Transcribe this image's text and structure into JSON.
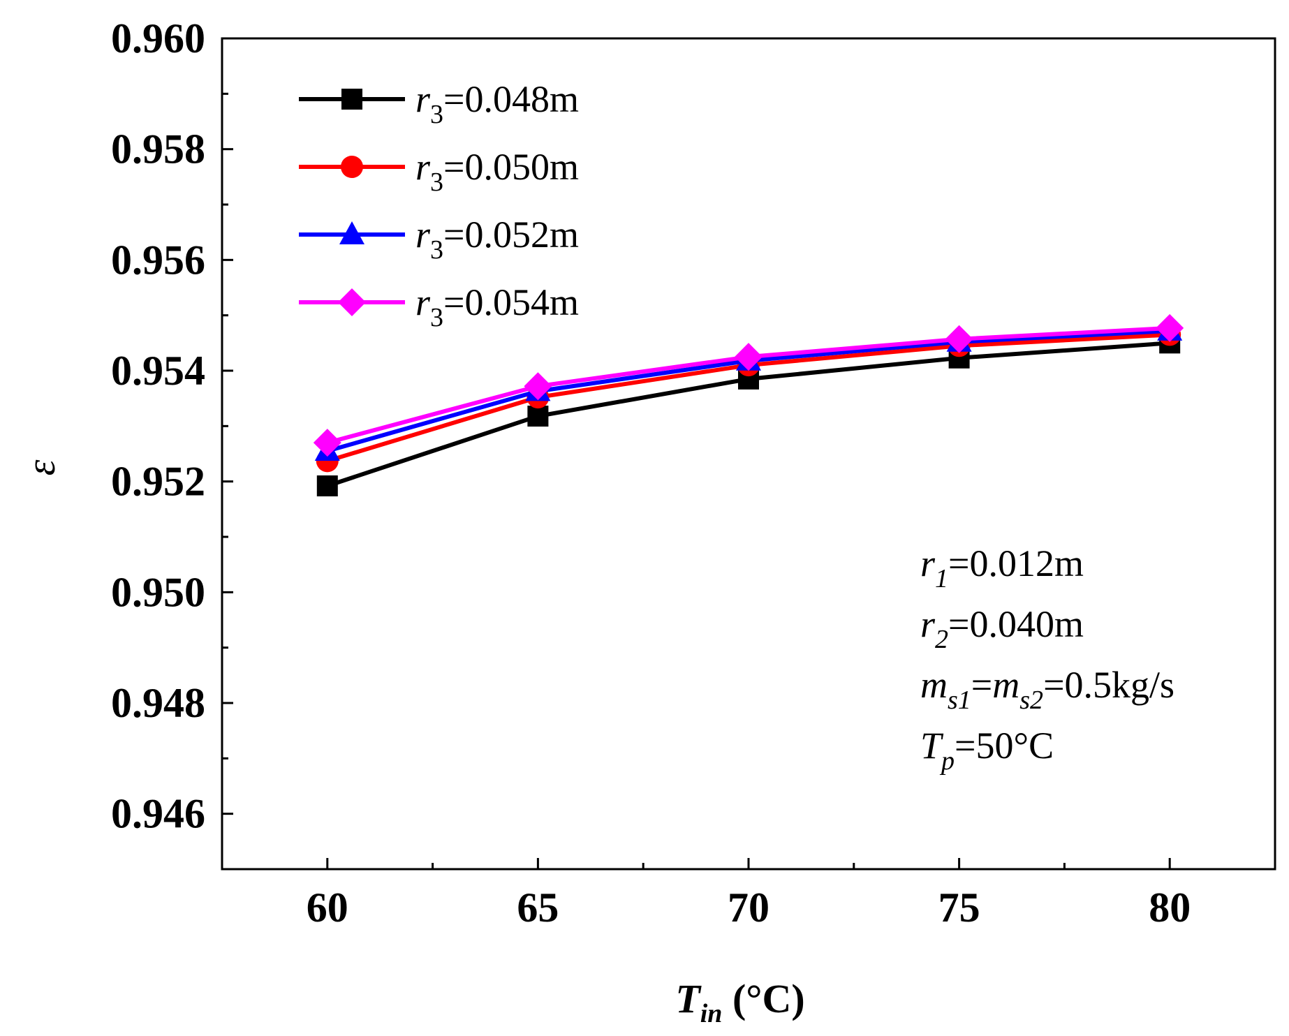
{
  "chart_data": {
    "type": "line",
    "title": "",
    "xlabel": {
      "main": "T",
      "sub": "in",
      "unit": " (°C)"
    },
    "ylabel": "ε",
    "x": [
      60,
      65,
      70,
      75,
      80
    ],
    "xlim": [
      57.5,
      82.5
    ],
    "ylim": [
      0.945,
      0.96
    ],
    "xticks": [
      60,
      65,
      70,
      75,
      80
    ],
    "yticks": [
      0.946,
      0.948,
      0.95,
      0.952,
      0.954,
      0.956,
      0.958,
      0.96
    ],
    "ytick_labels": [
      "0.946",
      "0.948",
      "0.950",
      "0.952",
      "0.954",
      "0.956",
      "0.958",
      "0.960"
    ],
    "grid": false,
    "legend_position": "top-left",
    "series": [
      {
        "name": "r3=0.048m",
        "label_var": "r",
        "label_sub": "3",
        "label_rest": "=0.048m",
        "color": "#000000",
        "marker": "square",
        "values": [
          0.95192,
          0.95318,
          0.95385,
          0.95423,
          0.9545
        ]
      },
      {
        "name": "r3=0.050m",
        "label_var": "r",
        "label_sub": "3",
        "label_rest": "=0.050m",
        "color": "#ff0000",
        "marker": "circle",
        "values": [
          0.95237,
          0.95352,
          0.9541,
          0.95445,
          0.95465
        ]
      },
      {
        "name": "r3=0.052m",
        "label_var": "r",
        "label_sub": "3",
        "label_rest": "=0.052m",
        "color": "#0000ff",
        "marker": "triangle",
        "values": [
          0.95255,
          0.95363,
          0.95418,
          0.95452,
          0.95472
        ]
      },
      {
        "name": "r3=0.054m",
        "label_var": "r",
        "label_sub": "3",
        "label_rest": "=0.054m",
        "color": "#ff00ff",
        "marker": "diamond",
        "values": [
          0.9527,
          0.95372,
          0.95425,
          0.95457,
          0.95477
        ]
      }
    ],
    "annotations": [
      {
        "var": "r",
        "sub": "1",
        "rest": "=0.012m"
      },
      {
        "var": "r",
        "sub": "2",
        "rest": "=0.040m"
      },
      {
        "var": "m",
        "sub": "s1",
        "mid": "=",
        "var2": "m",
        "sub2": "s2",
        "rest": "=0.5kg/s"
      },
      {
        "var": "T",
        "sub": "p",
        "rest": "=50°C"
      }
    ]
  }
}
